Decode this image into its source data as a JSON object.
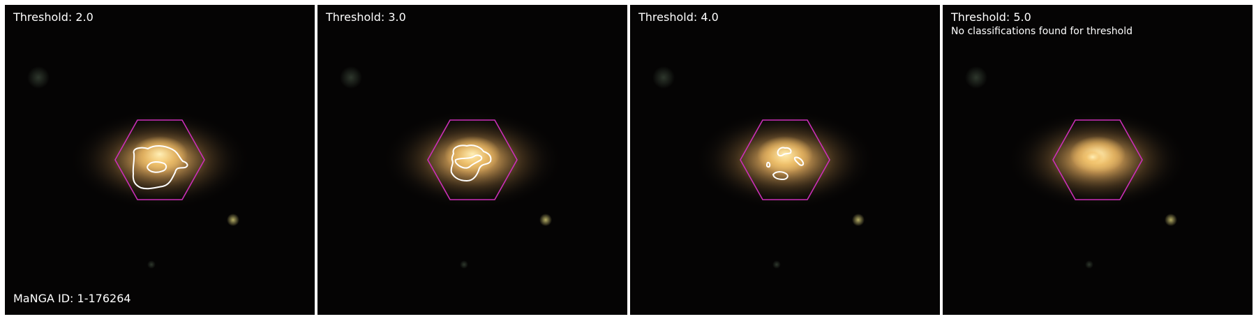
{
  "manga_id": "MaNGA ID: 1-176264",
  "panels": [
    {
      "title": "Threshold: 2.0",
      "note": ""
    },
    {
      "title": "Threshold: 3.0",
      "note": ""
    },
    {
      "title": "Threshold: 4.0",
      "note": ""
    },
    {
      "title": "Threshold: 5.0",
      "note": "No classifications found for threshold"
    }
  ],
  "colors": {
    "hexagon": "#cc2fb8",
    "contour": "#ffffff",
    "sky": "#050404",
    "galaxy_core": "#ffd37a"
  }
}
